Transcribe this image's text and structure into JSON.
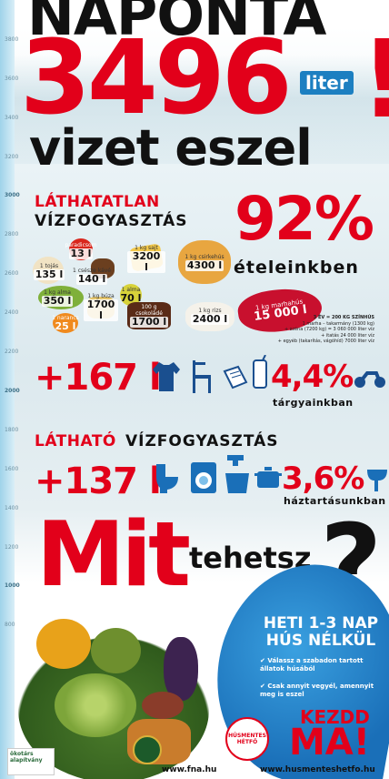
{
  "ruler": {
    "labels": [
      "3800",
      "3600",
      "3400",
      "3200",
      "3000",
      "2800",
      "2600",
      "2400",
      "2200",
      "2000",
      "1800",
      "1600",
      "1400",
      "1200",
      "1000",
      "800"
    ]
  },
  "headline": {
    "line1": "NAPONTA",
    "number": "3496",
    "exclamation": "!",
    "unit": "liter",
    "line2": "vizet eszel"
  },
  "invisible": {
    "title_red": "LÁTHATATLAN",
    "title_black": "VÍZFOGYASZTÁS",
    "food_percent": "92%",
    "food_label": "ételeinkben",
    "foods": [
      {
        "label": "1 tojás",
        "value": "135 l"
      },
      {
        "label": "paradicsom",
        "value": "13 l"
      },
      {
        "label": "1 csésze kávé",
        "value": "140 l"
      },
      {
        "label": "1 kg sajt",
        "value": "3200 l"
      },
      {
        "label": "1 kg csirkehús",
        "value": "4300 l"
      },
      {
        "label": "1 kg alma",
        "value": "350 l"
      },
      {
        "label": "1 kg búza",
        "value": "1700 l"
      },
      {
        "label": "1 alma",
        "value": "70 l"
      },
      {
        "label": "1 narancs",
        "value": "25 l"
      },
      {
        "label": "100 g csokoládé",
        "value": "1700 l"
      },
      {
        "label": "1 kg rizs",
        "value": "2400 l"
      }
    ],
    "beef": {
      "label": "1 kg marhahús",
      "value": "15 000 l"
    },
    "beef_details": [
      "3 ÉV = 200 KG SZÍNHÚS",
      "1 marha – takarmány (1300 kg)",
      "+ széna (7200 kg) = 3 060 000 liter víz",
      "+ itatás 24 000 liter víz",
      "+ egyéb (takarítás, vágóhíd) 7000 liter víz"
    ],
    "objects_amount": "+167 l",
    "objects_percent": "4,4%",
    "objects_label": "tárgyainkban"
  },
  "visible": {
    "title_red": "LÁTHATÓ",
    "title_black": "VÍZFOGYASZTÁS",
    "household_amount": "+137 l",
    "household_percent": "3,6%",
    "household_label": "háztartásunkban"
  },
  "cta": {
    "mit": "Mit",
    "tehetsz": "tehetsz",
    "qmark": "?",
    "heti": "HETI 1-3 NAP HÚS NÉLKÜL",
    "bullets": [
      "Válassz a szabadon tartott állatok húsából",
      "Csak annyit vegyél, amennyit meg is eszel"
    ],
    "kezdd": "KEZDD",
    "ma": "MA!"
  },
  "footer": {
    "fna_url": "www.fna.hu",
    "hm_url": "www.husmenteshetfo.hu",
    "hm_logo": "HÚSMENTES HÉTFŐ",
    "okotars": "ökotárs alapítvány"
  },
  "colors": {
    "red": "#e2001a",
    "blue": "#1a6fb8",
    "black": "#111111"
  }
}
